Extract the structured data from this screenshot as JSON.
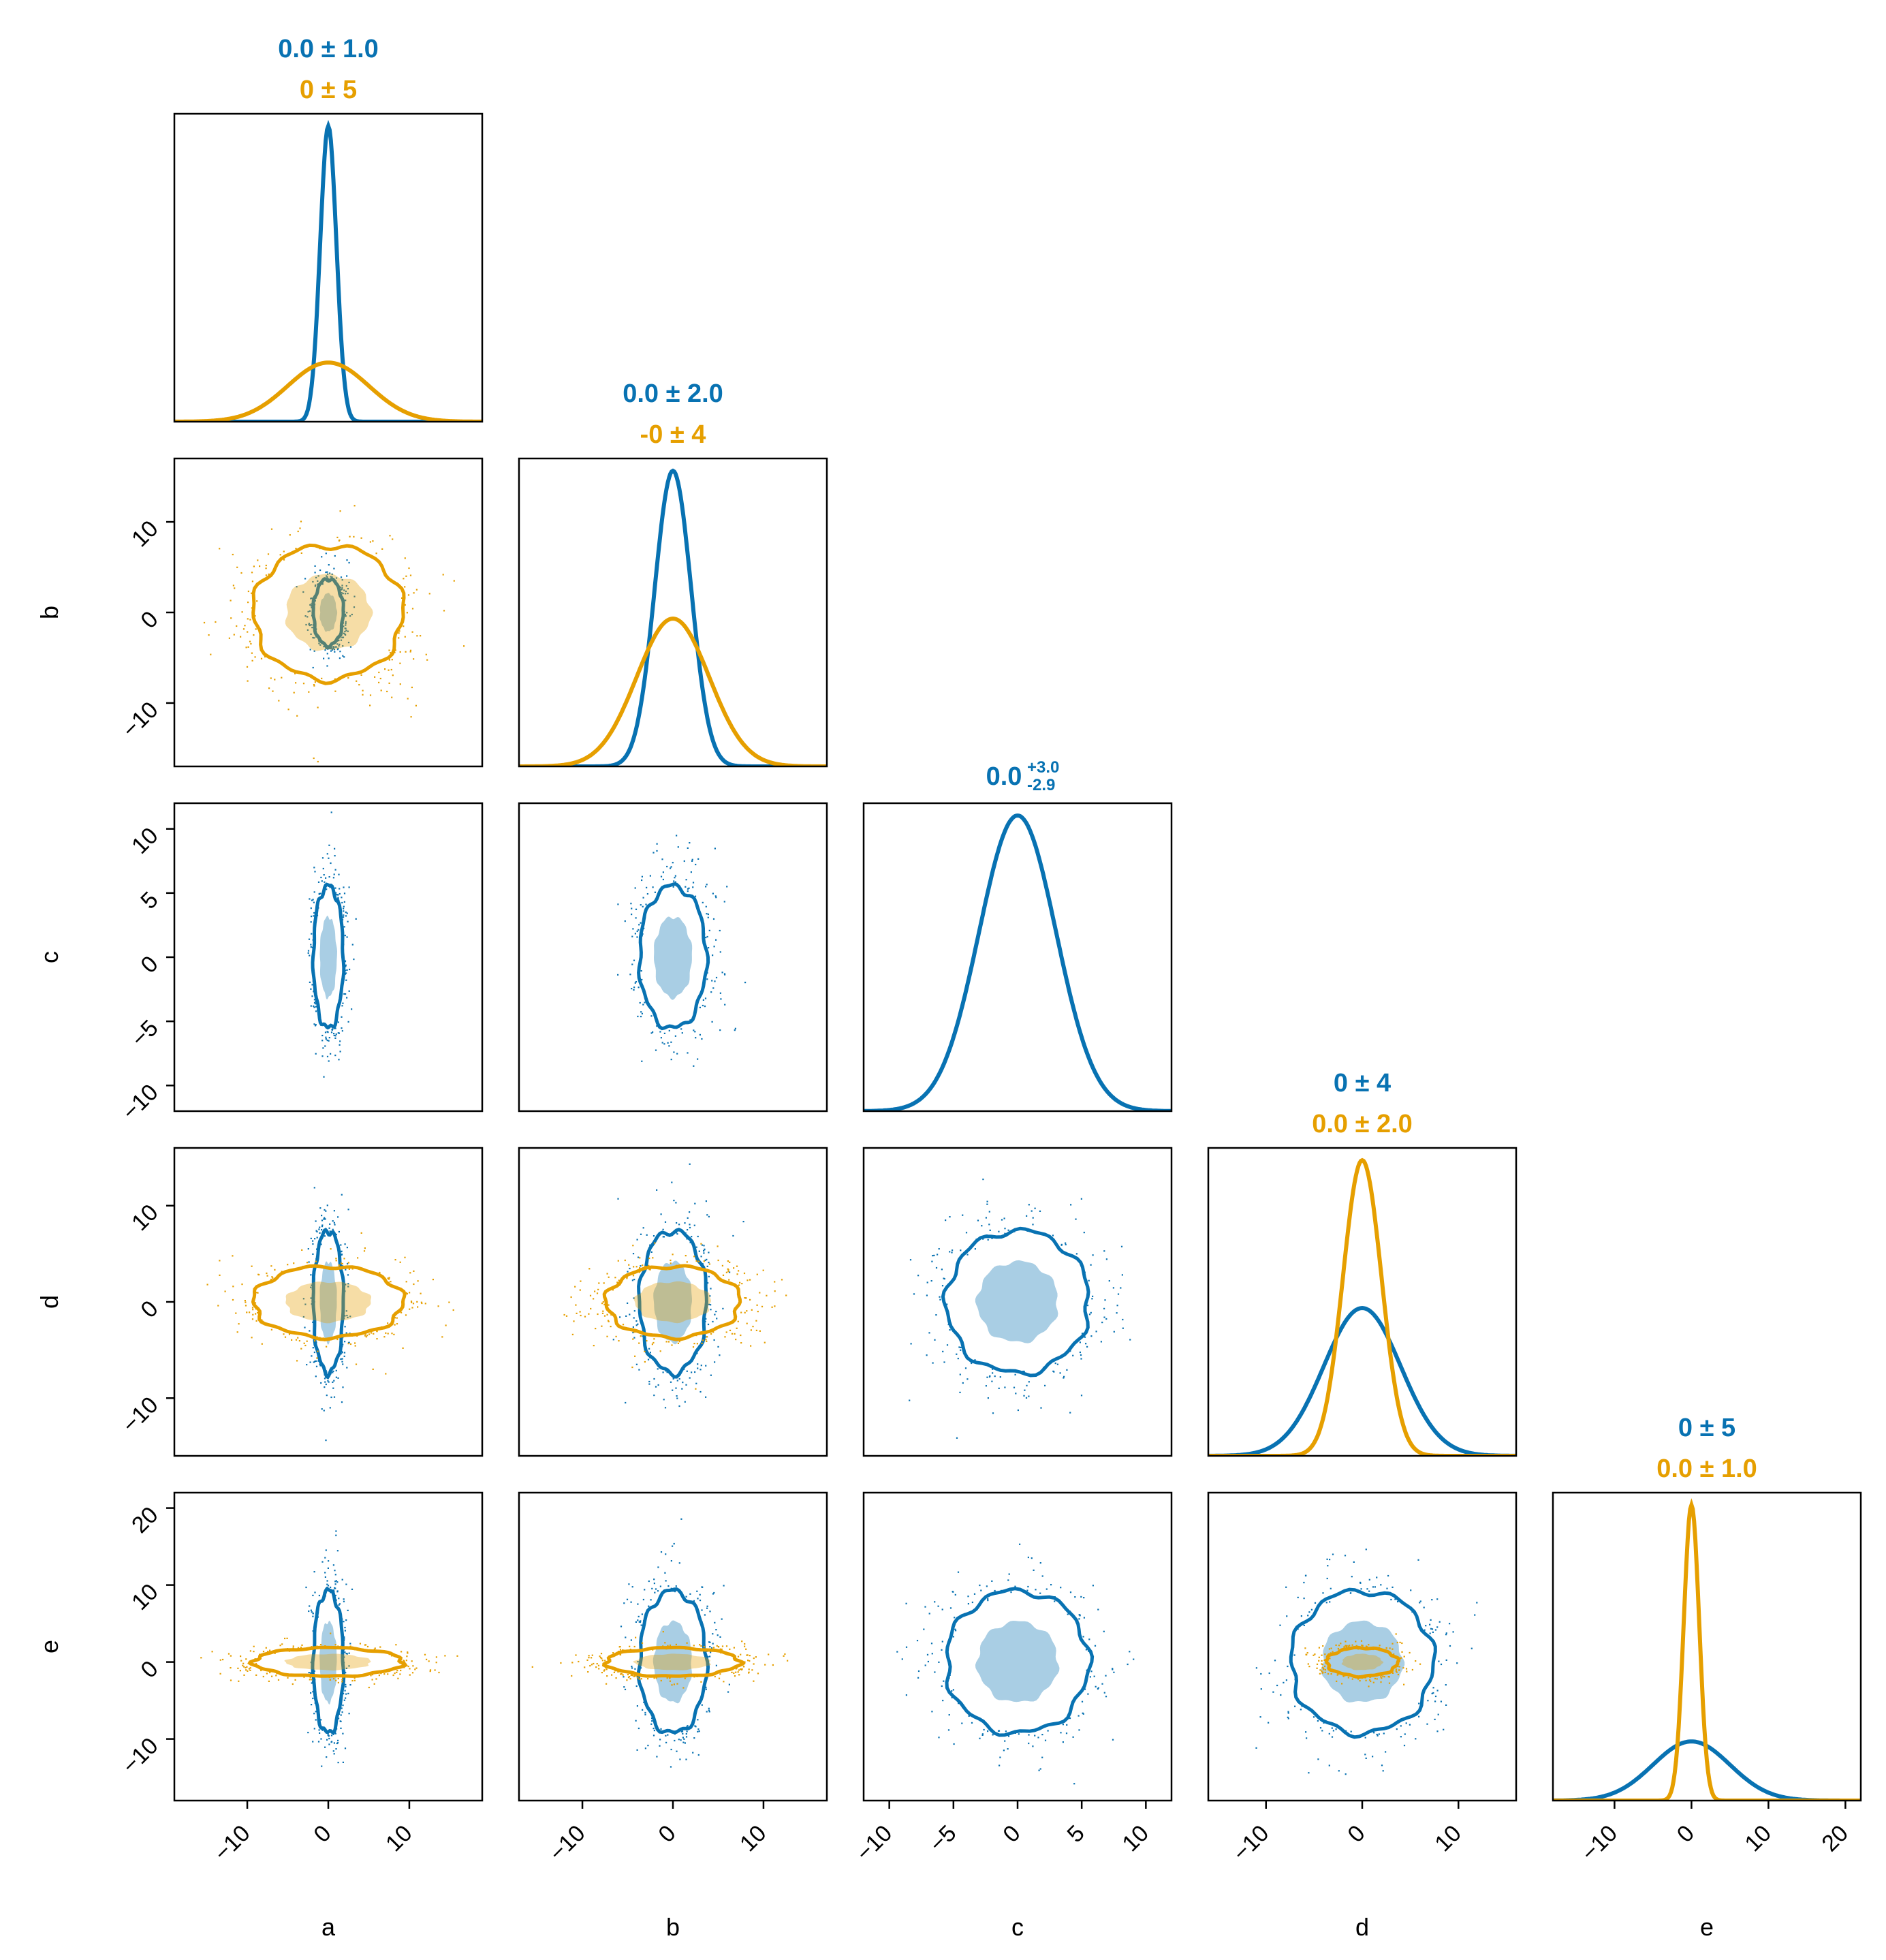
{
  "colors": {
    "blue": "#0872b2",
    "orange": "#e69f00",
    "axis": "#000000"
  },
  "chart_data": {
    "type": "corner",
    "title": "",
    "grid": false,
    "legend": "none",
    "variables": [
      "a",
      "b",
      "c",
      "d",
      "e"
    ],
    "series": [
      {
        "name": "",
        "color": "blue",
        "stds": [
          1,
          2,
          3,
          4,
          5
        ],
        "present": [
          true,
          true,
          true,
          true,
          true
        ]
      },
      {
        "name": "",
        "color": "orange",
        "stds": [
          5,
          4,
          null,
          2,
          1
        ],
        "present": [
          true,
          true,
          false,
          true,
          true
        ]
      }
    ],
    "axis_ranges": [
      [
        -19,
        19
      ],
      [
        -17,
        17
      ],
      [
        -12,
        12
      ],
      [
        -16,
        16
      ],
      [
        -18,
        22
      ]
    ],
    "ticks": [
      [
        -10,
        0,
        10
      ],
      [
        -10,
        0,
        10
      ],
      [
        -10,
        -5,
        0,
        5,
        10
      ],
      [
        -10,
        0,
        10
      ],
      [
        -10,
        0,
        10,
        20
      ]
    ],
    "tick_labels": [
      [
        "−10",
        "0",
        "10"
      ],
      [
        "−10",
        "0",
        "10"
      ],
      [
        "−10",
        "−5",
        "0",
        "5",
        "10"
      ],
      [
        "−10",
        "0",
        "10"
      ],
      [
        "−10",
        "0",
        "10",
        "20"
      ]
    ],
    "diag_titles": [
      [
        {
          "series": "blue",
          "text": "0.0 ± 1.0"
        },
        {
          "series": "orange",
          "text": "0 ± 5"
        }
      ],
      [
        {
          "series": "blue",
          "text": "0.0 ± 2.0"
        },
        {
          "series": "orange",
          "text": "-0 ± 4"
        }
      ],
      [
        {
          "series": "blue",
          "text": "0.0",
          "sup": "+3.0",
          "sub": "-2.9"
        }
      ],
      [
        {
          "series": "blue",
          "text": "0 ± 4"
        },
        {
          "series": "orange",
          "text": "0.0 ± 2.0"
        }
      ],
      [
        {
          "series": "blue",
          "text": "0 ± 5"
        },
        {
          "series": "orange",
          "text": "0.0 ± 1.0"
        }
      ]
    ]
  }
}
